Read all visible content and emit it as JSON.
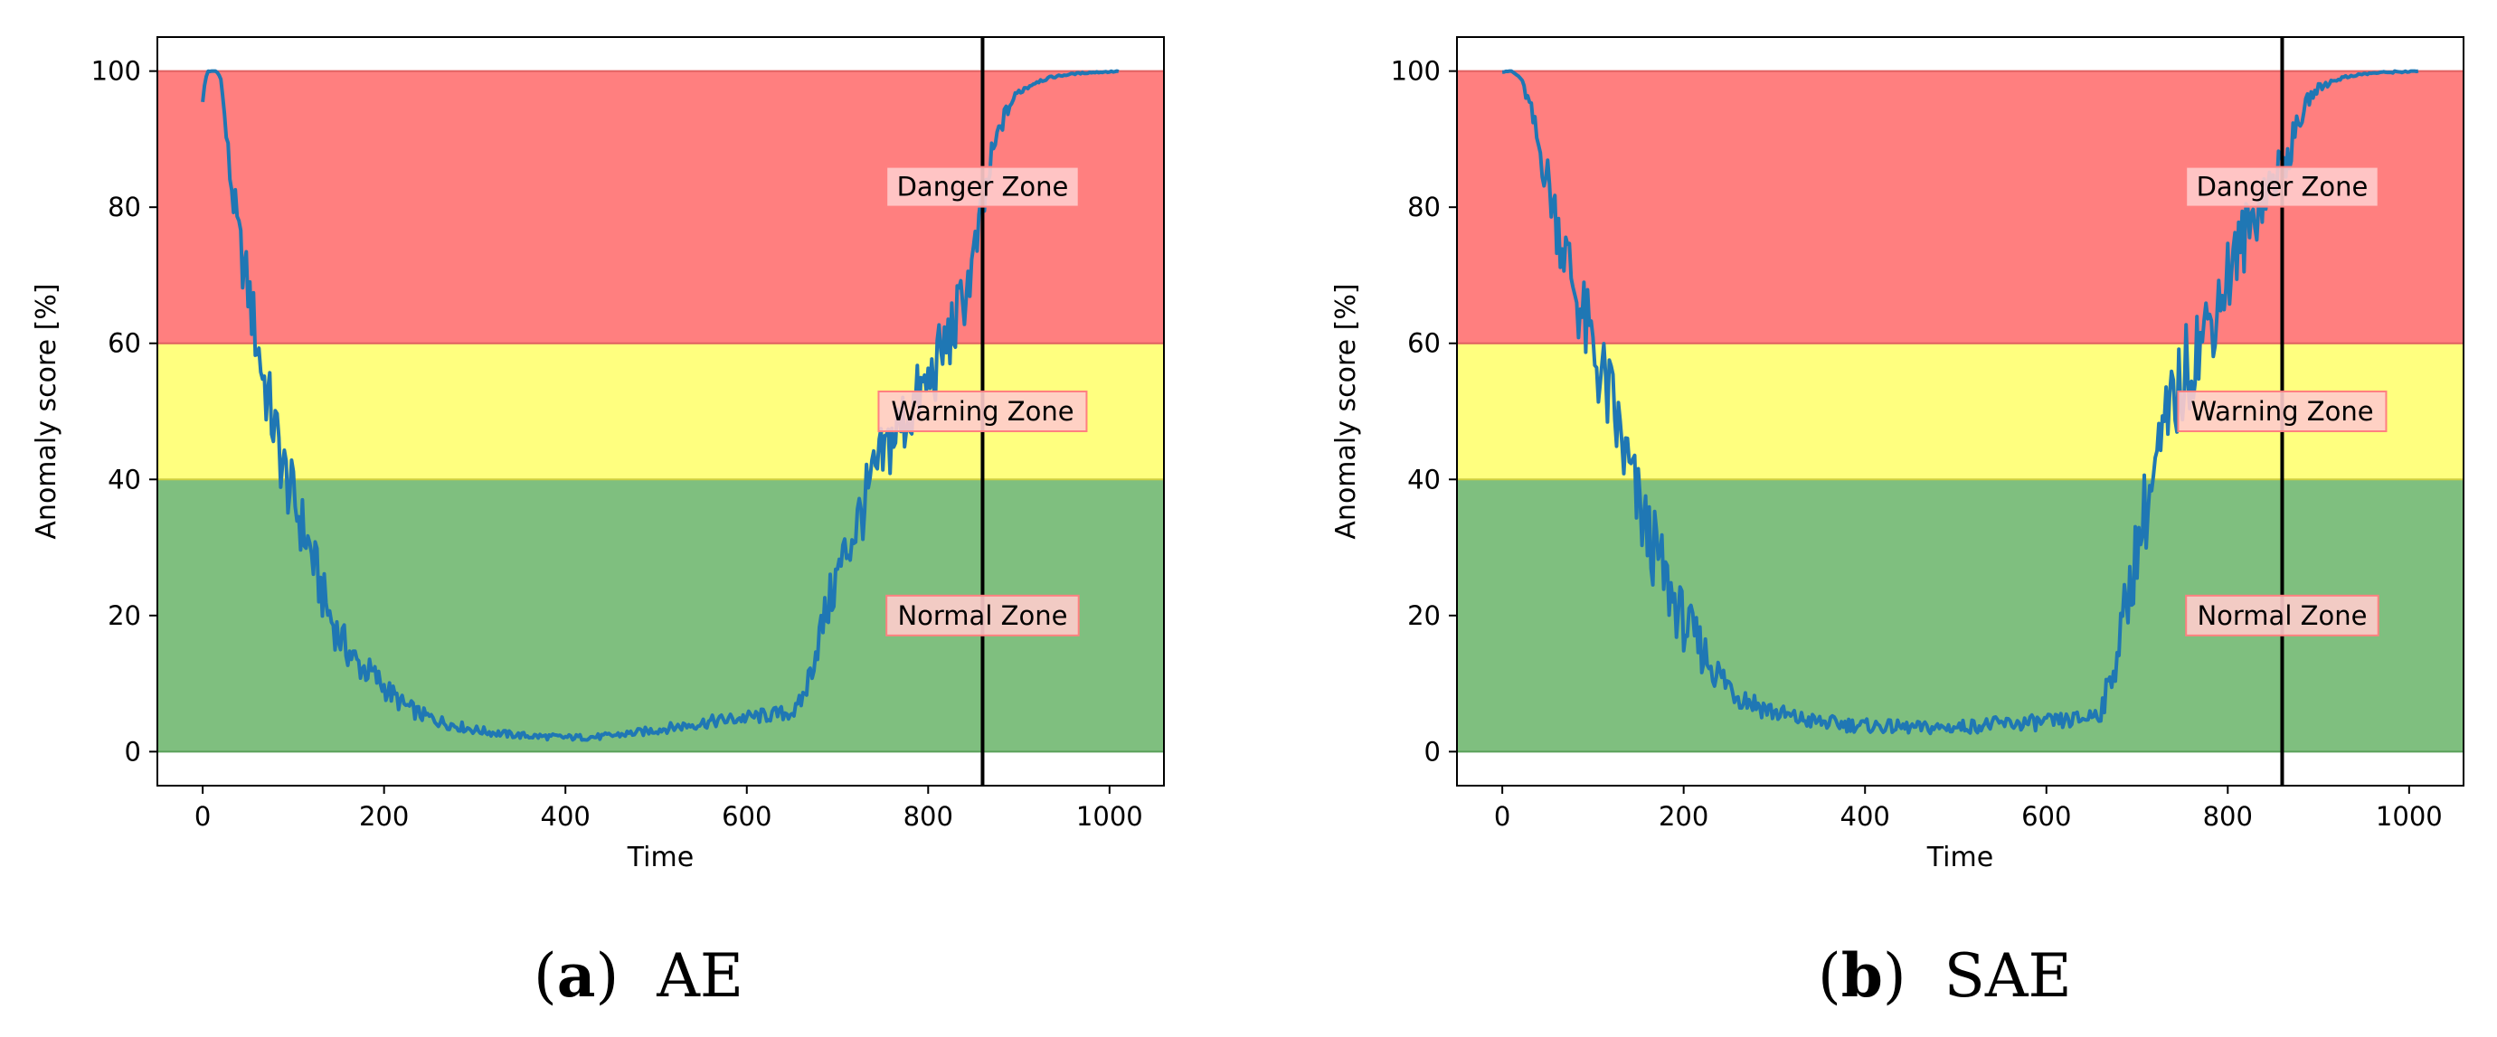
{
  "chart_data": [
    {
      "type": "line",
      "panel_label": "a",
      "caption": "AE",
      "xlabel": "Time",
      "ylabel": "Anomaly score [%]",
      "xlim": [
        -50,
        1060
      ],
      "ylim": [
        -5,
        105
      ],
      "xticks": [
        0,
        200,
        400,
        600,
        800,
        1000
      ],
      "yticks": [
        0,
        20,
        40,
        60,
        80,
        100
      ],
      "zones": [
        {
          "name": "Normal Zone",
          "from": 0,
          "to": 40,
          "color": "#7fbf7f",
          "label_y": 20
        },
        {
          "name": "Warning Zone",
          "from": 40,
          "to": 60,
          "color": "#ffff7f",
          "label_y": 50
        },
        {
          "name": "Danger Zone",
          "from": 60,
          "to": 100,
          "color": "#ff7f7f",
          "label_y": 83
        }
      ],
      "vline_x": 860,
      "line_color": "#1f77b4",
      "series": [
        {
          "noise": 0.1,
          "x": [
            0,
            5,
            10,
            15,
            20,
            30,
            40,
            50,
            60,
            70,
            80,
            90,
            100,
            110,
            120,
            130,
            140,
            150,
            160,
            170,
            180,
            190,
            200,
            220,
            240,
            260,
            280,
            300,
            320,
            340,
            360,
            380,
            400,
            420,
            440,
            460,
            480,
            500,
            520,
            540,
            560,
            580,
            600,
            620,
            640,
            655,
            665,
            680,
            700,
            720,
            740,
            760,
            780,
            800,
            810,
            820,
            830,
            840,
            850,
            860,
            870,
            880,
            890,
            900,
            920,
            940,
            960,
            980,
            1000,
            1010
          ],
          "y": [
            96,
            100,
            100,
            100,
            99,
            85,
            75,
            68,
            60,
            53,
            47,
            41,
            37,
            33,
            29,
            24,
            20,
            17,
            15,
            13,
            12,
            11,
            9.5,
            7,
            5.5,
            4.5,
            3.8,
            3.2,
            2.8,
            2.5,
            2.3,
            2.2,
            2.1,
            2.1,
            2.2,
            2.5,
            2.8,
            3.2,
            3.6,
            4,
            4.4,
            4.7,
            5,
            5.3,
            5.6,
            6,
            9,
            17,
            26,
            33,
            40,
            46,
            50,
            54,
            57,
            60,
            63,
            67,
            72,
            79,
            87,
            92,
            95,
            97,
            98.5,
            99.2,
            99.6,
            99.8,
            99.9,
            100
          ]
        }
      ]
    },
    {
      "type": "line",
      "panel_label": "b",
      "caption": "SAE",
      "xlabel": "Time",
      "ylabel": "Anomaly score [%]",
      "xlim": [
        -50,
        1060
      ],
      "ylim": [
        -5,
        105
      ],
      "xticks": [
        0,
        200,
        400,
        600,
        800,
        1000
      ],
      "yticks": [
        0,
        20,
        40,
        60,
        80,
        100
      ],
      "zones": [
        {
          "name": "Normal Zone",
          "from": 0,
          "to": 40,
          "color": "#7fbf7f",
          "label_y": 20
        },
        {
          "name": "Warning Zone",
          "from": 40,
          "to": 60,
          "color": "#ffff7f",
          "label_y": 50
        },
        {
          "name": "Danger Zone",
          "from": 60,
          "to": 100,
          "color": "#ff7f7f",
          "label_y": 83
        }
      ],
      "vline_x": 860,
      "line_color": "#1f77b4",
      "series": [
        {
          "noise": 0.13,
          "x": [
            0,
            10,
            20,
            30,
            40,
            50,
            60,
            70,
            80,
            90,
            100,
            110,
            120,
            130,
            140,
            150,
            160,
            170,
            180,
            190,
            200,
            220,
            240,
            260,
            280,
            300,
            320,
            340,
            360,
            380,
            400,
            420,
            440,
            460,
            480,
            500,
            520,
            540,
            560,
            580,
            600,
            620,
            640,
            660,
            670,
            680,
            690,
            700,
            710,
            720,
            730,
            740,
            760,
            780,
            800,
            820,
            840,
            860,
            870,
            880,
            890,
            900,
            920,
            940,
            960,
            980,
            1000,
            1010
          ],
          "y": [
            100,
            100,
            99,
            95,
            89,
            84,
            78,
            73,
            68,
            63,
            59,
            55,
            51,
            46,
            41,
            36,
            32,
            29,
            25,
            22,
            19,
            15,
            11,
            8.5,
            7,
            5.8,
            5,
            4.5,
            4.2,
            4,
            3.8,
            3.7,
            3.6,
            3.5,
            3.5,
            3.6,
            3.8,
            4,
            4.1,
            4.2,
            4.3,
            4.5,
            4.8,
            6,
            10,
            16,
            23,
            30,
            36,
            41,
            46,
            51,
            58,
            63,
            70,
            76,
            82,
            86,
            89,
            93,
            96,
            97.5,
            98.8,
            99.4,
            99.7,
            99.85,
            99.95,
            100
          ]
        }
      ]
    }
  ]
}
